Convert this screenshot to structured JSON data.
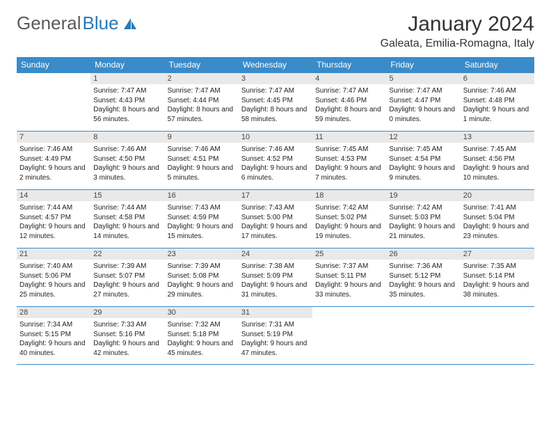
{
  "logo": {
    "part1": "General",
    "part2": "Blue"
  },
  "title": "January 2024",
  "location": "Galeata, Emilia-Romagna, Italy",
  "colors": {
    "header_bg": "#3a8bc9",
    "header_text": "#ffffff",
    "daynum_bg": "#e9e9e9",
    "border": "#3a8bc9",
    "body_text": "#222222",
    "logo_gray": "#5a5a5a",
    "logo_blue": "#2a7ab8"
  },
  "fonts": {
    "title_size": 30,
    "location_size": 16,
    "dayhead_size": 12,
    "daynum_size": 11,
    "info_size": 10
  },
  "weekdays": [
    "Sunday",
    "Monday",
    "Tuesday",
    "Wednesday",
    "Thursday",
    "Friday",
    "Saturday"
  ],
  "leading_blanks": 1,
  "trailing_blanks": 3,
  "days": [
    {
      "n": "1",
      "sunrise": "7:47 AM",
      "sunset": "4:43 PM",
      "daylight": "8 hours and 56 minutes."
    },
    {
      "n": "2",
      "sunrise": "7:47 AM",
      "sunset": "4:44 PM",
      "daylight": "8 hours and 57 minutes."
    },
    {
      "n": "3",
      "sunrise": "7:47 AM",
      "sunset": "4:45 PM",
      "daylight": "8 hours and 58 minutes."
    },
    {
      "n": "4",
      "sunrise": "7:47 AM",
      "sunset": "4:46 PM",
      "daylight": "8 hours and 59 minutes."
    },
    {
      "n": "5",
      "sunrise": "7:47 AM",
      "sunset": "4:47 PM",
      "daylight": "9 hours and 0 minutes."
    },
    {
      "n": "6",
      "sunrise": "7:46 AM",
      "sunset": "4:48 PM",
      "daylight": "9 hours and 1 minute."
    },
    {
      "n": "7",
      "sunrise": "7:46 AM",
      "sunset": "4:49 PM",
      "daylight": "9 hours and 2 minutes."
    },
    {
      "n": "8",
      "sunrise": "7:46 AM",
      "sunset": "4:50 PM",
      "daylight": "9 hours and 3 minutes."
    },
    {
      "n": "9",
      "sunrise": "7:46 AM",
      "sunset": "4:51 PM",
      "daylight": "9 hours and 5 minutes."
    },
    {
      "n": "10",
      "sunrise": "7:46 AM",
      "sunset": "4:52 PM",
      "daylight": "9 hours and 6 minutes."
    },
    {
      "n": "11",
      "sunrise": "7:45 AM",
      "sunset": "4:53 PM",
      "daylight": "9 hours and 7 minutes."
    },
    {
      "n": "12",
      "sunrise": "7:45 AM",
      "sunset": "4:54 PM",
      "daylight": "9 hours and 9 minutes."
    },
    {
      "n": "13",
      "sunrise": "7:45 AM",
      "sunset": "4:56 PM",
      "daylight": "9 hours and 10 minutes."
    },
    {
      "n": "14",
      "sunrise": "7:44 AM",
      "sunset": "4:57 PM",
      "daylight": "9 hours and 12 minutes."
    },
    {
      "n": "15",
      "sunrise": "7:44 AM",
      "sunset": "4:58 PM",
      "daylight": "9 hours and 14 minutes."
    },
    {
      "n": "16",
      "sunrise": "7:43 AM",
      "sunset": "4:59 PM",
      "daylight": "9 hours and 15 minutes."
    },
    {
      "n": "17",
      "sunrise": "7:43 AM",
      "sunset": "5:00 PM",
      "daylight": "9 hours and 17 minutes."
    },
    {
      "n": "18",
      "sunrise": "7:42 AM",
      "sunset": "5:02 PM",
      "daylight": "9 hours and 19 minutes."
    },
    {
      "n": "19",
      "sunrise": "7:42 AM",
      "sunset": "5:03 PM",
      "daylight": "9 hours and 21 minutes."
    },
    {
      "n": "20",
      "sunrise": "7:41 AM",
      "sunset": "5:04 PM",
      "daylight": "9 hours and 23 minutes."
    },
    {
      "n": "21",
      "sunrise": "7:40 AM",
      "sunset": "5:06 PM",
      "daylight": "9 hours and 25 minutes."
    },
    {
      "n": "22",
      "sunrise": "7:39 AM",
      "sunset": "5:07 PM",
      "daylight": "9 hours and 27 minutes."
    },
    {
      "n": "23",
      "sunrise": "7:39 AM",
      "sunset": "5:08 PM",
      "daylight": "9 hours and 29 minutes."
    },
    {
      "n": "24",
      "sunrise": "7:38 AM",
      "sunset": "5:09 PM",
      "daylight": "9 hours and 31 minutes."
    },
    {
      "n": "25",
      "sunrise": "7:37 AM",
      "sunset": "5:11 PM",
      "daylight": "9 hours and 33 minutes."
    },
    {
      "n": "26",
      "sunrise": "7:36 AM",
      "sunset": "5:12 PM",
      "daylight": "9 hours and 35 minutes."
    },
    {
      "n": "27",
      "sunrise": "7:35 AM",
      "sunset": "5:14 PM",
      "daylight": "9 hours and 38 minutes."
    },
    {
      "n": "28",
      "sunrise": "7:34 AM",
      "sunset": "5:15 PM",
      "daylight": "9 hours and 40 minutes."
    },
    {
      "n": "29",
      "sunrise": "7:33 AM",
      "sunset": "5:16 PM",
      "daylight": "9 hours and 42 minutes."
    },
    {
      "n": "30",
      "sunrise": "7:32 AM",
      "sunset": "5:18 PM",
      "daylight": "9 hours and 45 minutes."
    },
    {
      "n": "31",
      "sunrise": "7:31 AM",
      "sunset": "5:19 PM",
      "daylight": "9 hours and 47 minutes."
    }
  ],
  "labels": {
    "sunrise": "Sunrise:",
    "sunset": "Sunset:",
    "daylight": "Daylight:"
  }
}
